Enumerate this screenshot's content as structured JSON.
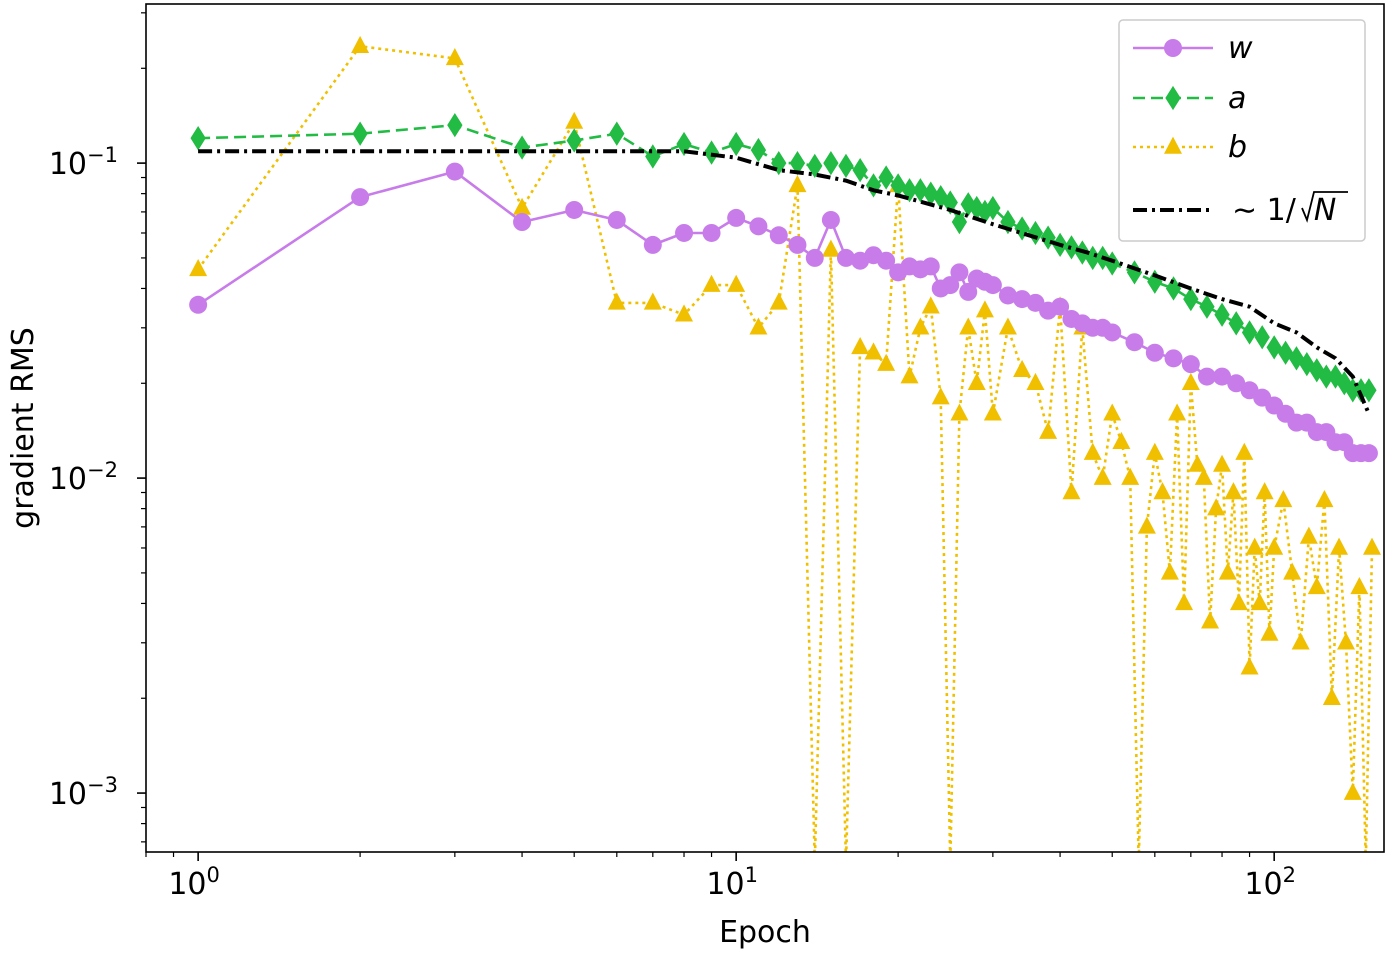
{
  "chart_data": {
    "type": "line",
    "title": "",
    "xlabel": "Epoch",
    "ylabel": "gradient RMS",
    "xscale": "log",
    "yscale": "log",
    "xlim": [
      0.8,
      160
    ],
    "ylim": [
      0.00065,
      0.32
    ],
    "grid": false,
    "legend_position": "top-right",
    "xticks": [
      {
        "base": "10",
        "exp": "0",
        "value": 1
      },
      {
        "base": "10",
        "exp": "1",
        "value": 10
      },
      {
        "base": "10",
        "exp": "2",
        "value": 100
      }
    ],
    "yticks": [
      {
        "base": "10",
        "exp": "−3",
        "value": 0.001
      },
      {
        "base": "10",
        "exp": "−2",
        "value": 0.01
      },
      {
        "base": "10",
        "exp": "−1",
        "value": 0.1
      }
    ],
    "series": [
      {
        "name": "w",
        "color": "#c77cea",
        "style": "solid",
        "marker": "circle",
        "x": [
          1,
          2,
          3,
          4,
          5,
          6,
          7,
          8,
          9,
          10,
          11,
          12,
          13,
          14,
          15,
          16,
          17,
          18,
          19,
          20,
          21,
          22,
          23,
          24,
          25,
          26,
          27,
          28,
          29,
          30,
          32,
          34,
          36,
          38,
          40,
          42,
          44,
          46,
          48,
          50,
          55,
          60,
          65,
          70,
          75,
          80,
          85,
          90,
          95,
          100,
          105,
          110,
          115,
          120,
          125,
          130,
          135,
          140,
          145,
          150
        ],
        "y": [
          0.0355,
          0.078,
          0.094,
          0.065,
          0.071,
          0.066,
          0.055,
          0.06,
          0.06,
          0.067,
          0.063,
          0.059,
          0.055,
          0.05,
          0.066,
          0.05,
          0.049,
          0.051,
          0.049,
          0.045,
          0.047,
          0.046,
          0.047,
          0.04,
          0.041,
          0.045,
          0.039,
          0.043,
          0.042,
          0.041,
          0.038,
          0.037,
          0.036,
          0.034,
          0.035,
          0.032,
          0.031,
          0.03,
          0.03,
          0.029,
          0.027,
          0.025,
          0.024,
          0.023,
          0.021,
          0.021,
          0.02,
          0.019,
          0.018,
          0.017,
          0.016,
          0.015,
          0.015,
          0.014,
          0.014,
          0.013,
          0.013,
          0.012,
          0.012,
          0.012
        ]
      },
      {
        "name": "a",
        "color": "#22bb44",
        "style": "dashed",
        "marker": "diamond",
        "x": [
          1,
          2,
          3,
          4,
          5,
          6,
          7,
          8,
          9,
          10,
          11,
          12,
          13,
          14,
          15,
          16,
          17,
          18,
          19,
          20,
          21,
          22,
          23,
          24,
          25,
          26,
          27,
          28,
          29,
          30,
          32,
          34,
          36,
          38,
          40,
          42,
          44,
          46,
          48,
          50,
          55,
          60,
          65,
          70,
          75,
          80,
          85,
          90,
          95,
          100,
          105,
          110,
          115,
          120,
          125,
          130,
          135,
          140,
          145,
          150
        ],
        "y": [
          0.12,
          0.124,
          0.132,
          0.112,
          0.118,
          0.124,
          0.105,
          0.115,
          0.108,
          0.115,
          0.11,
          0.1,
          0.1,
          0.098,
          0.1,
          0.098,
          0.095,
          0.085,
          0.09,
          0.085,
          0.082,
          0.082,
          0.08,
          0.078,
          0.075,
          0.065,
          0.074,
          0.072,
          0.07,
          0.072,
          0.065,
          0.062,
          0.06,
          0.058,
          0.055,
          0.054,
          0.052,
          0.05,
          0.05,
          0.048,
          0.045,
          0.042,
          0.04,
          0.037,
          0.035,
          0.033,
          0.031,
          0.029,
          0.028,
          0.026,
          0.025,
          0.024,
          0.023,
          0.022,
          0.021,
          0.021,
          0.02,
          0.019,
          0.019,
          0.019
        ]
      },
      {
        "name": "b",
        "color": "#f0c000",
        "style": "dotted",
        "marker": "triangle",
        "x": [
          1,
          2,
          3,
          4,
          5,
          6,
          7,
          8,
          9,
          10,
          11,
          12,
          13,
          14,
          15,
          16,
          17,
          18,
          19,
          20,
          21,
          22,
          23,
          24,
          25,
          26,
          27,
          28,
          29,
          30,
          32,
          34,
          36,
          38,
          40,
          42,
          44,
          46,
          48,
          50,
          52,
          54,
          56,
          58,
          60,
          62,
          64,
          66,
          68,
          70,
          72,
          74,
          76,
          78,
          80,
          82,
          84,
          86,
          88,
          90,
          92,
          94,
          96,
          98,
          100,
          104,
          108,
          112,
          116,
          120,
          124,
          128,
          132,
          136,
          140,
          144,
          148,
          152
        ],
        "y": [
          0.046,
          0.235,
          0.215,
          0.072,
          0.135,
          0.036,
          0.036,
          0.033,
          0.041,
          0.041,
          0.03,
          0.036,
          0.085,
          0.0006,
          0.053,
          0.0006,
          0.026,
          0.025,
          0.023,
          0.085,
          0.021,
          0.03,
          0.035,
          0.018,
          0.0006,
          0.016,
          0.03,
          0.02,
          0.034,
          0.016,
          0.03,
          0.022,
          0.02,
          0.014,
          0.035,
          0.009,
          0.03,
          0.012,
          0.01,
          0.016,
          0.013,
          0.01,
          0.0006,
          0.007,
          0.012,
          0.009,
          0.005,
          0.016,
          0.004,
          0.02,
          0.011,
          0.01,
          0.0035,
          0.008,
          0.011,
          0.005,
          0.009,
          0.004,
          0.012,
          0.0025,
          0.006,
          0.004,
          0.009,
          0.0032,
          0.006,
          0.0085,
          0.005,
          0.003,
          0.0065,
          0.0045,
          0.0085,
          0.002,
          0.006,
          0.003,
          0.001,
          0.0045,
          0.0006,
          0.006
        ]
      },
      {
        "name": "∼ 1/√N",
        "color": "#000000",
        "style": "dashdot",
        "marker": "none",
        "x": [
          1,
          8,
          10,
          12,
          14,
          16,
          18,
          20,
          25,
          30,
          35,
          40,
          45,
          50,
          60,
          70,
          80,
          90,
          100,
          110,
          120,
          130,
          140,
          150
        ],
        "y": [
          0.109,
          0.109,
          0.104,
          0.095,
          0.092,
          0.088,
          0.082,
          0.079,
          0.071,
          0.064,
          0.059,
          0.055,
          0.052,
          0.049,
          0.044,
          0.04,
          0.037,
          0.035,
          0.031,
          0.029,
          0.026,
          0.024,
          0.021,
          0.016
        ]
      }
    ]
  },
  "legend": {
    "items": [
      {
        "label": "w",
        "color": "#c77cea",
        "style": "solid",
        "marker": "circle"
      },
      {
        "label": "a",
        "color": "#22bb44",
        "style": "dashed",
        "marker": "diamond"
      },
      {
        "label": "b",
        "color": "#f0c000",
        "style": "dotted",
        "marker": "triangle"
      },
      {
        "label_prefix": "∼ 1/",
        "label_root": "N",
        "color": "#000000",
        "style": "dashdot",
        "marker": "none"
      }
    ]
  }
}
